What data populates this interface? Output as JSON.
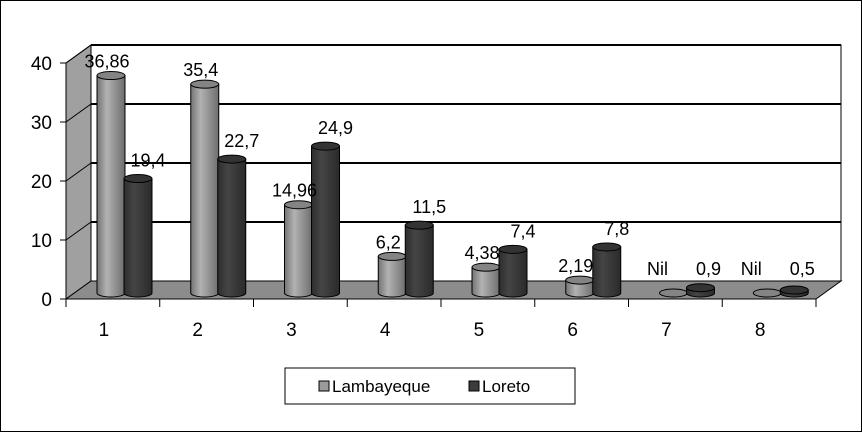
{
  "chart_data": {
    "type": "bar",
    "style": "3d-cylinder",
    "categories": [
      "1",
      "2",
      "3",
      "4",
      "5",
      "6",
      "7",
      "8"
    ],
    "series": [
      {
        "name": "Lambayeque",
        "color": "#9b9b9b",
        "values": [
          36.86,
          35.4,
          14.96,
          6.2,
          4.38,
          2.19,
          0,
          0
        ],
        "labels": [
          "36,86",
          "35,4",
          "14,96",
          "6,2",
          "4,38",
          "2,19",
          "Nil",
          "Nil"
        ]
      },
      {
        "name": "Loreto",
        "color": "#3c3c3c",
        "values": [
          19.4,
          22.7,
          24.9,
          11.5,
          7.4,
          7.8,
          0.9,
          0.5
        ],
        "labels": [
          "19,4",
          "22,7",
          "24,9",
          "11,5",
          "7,4",
          "7,8",
          "0,9",
          "0,5"
        ]
      }
    ],
    "yticks": [
      "0",
      "10",
      "20",
      "30",
      "40"
    ],
    "ylim": [
      0,
      40
    ],
    "grid": true,
    "legend_position": "bottom",
    "wall_color": "#a0a0a0",
    "floor_color": "#8c8c8c"
  }
}
